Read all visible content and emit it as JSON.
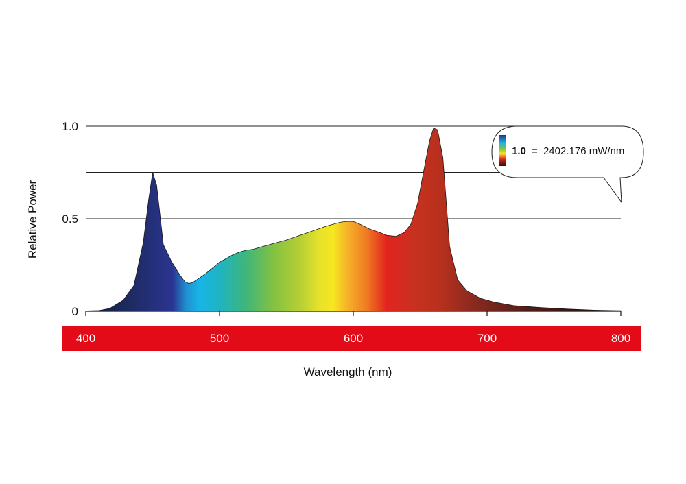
{
  "chart_data": {
    "type": "area",
    "title": "",
    "xlabel": "Wavelength (nm)",
    "ylabel": "Relative Power",
    "xlim": [
      400,
      800
    ],
    "ylim": [
      0,
      1.0
    ],
    "x_ticks": [
      400,
      500,
      600,
      700,
      800
    ],
    "y_ticks": [
      {
        "value": 0,
        "label": "0"
      },
      {
        "value": 0.5,
        "label": "0.5"
      },
      {
        "value": 1.0,
        "label": "1.0"
      }
    ],
    "gridlines": [
      0.25,
      0.5,
      0.75,
      1.0
    ],
    "grid": true,
    "x": [
      400,
      410,
      418,
      428,
      436,
      443,
      447,
      450,
      453,
      458,
      464,
      470,
      474,
      477,
      480,
      485,
      490,
      495,
      500,
      505,
      510,
      515,
      520,
      525,
      530,
      540,
      550,
      560,
      570,
      580,
      585,
      590,
      595,
      600,
      605,
      612,
      620,
      625,
      632,
      638,
      643,
      648,
      653,
      657,
      660,
      663,
      667,
      672,
      678,
      685,
      695,
      705,
      720,
      740,
      760,
      780,
      800
    ],
    "values": [
      0.002,
      0.004,
      0.015,
      0.06,
      0.14,
      0.37,
      0.6,
      0.75,
      0.68,
      0.36,
      0.27,
      0.2,
      0.16,
      0.15,
      0.155,
      0.18,
      0.205,
      0.235,
      0.265,
      0.285,
      0.305,
      0.32,
      0.33,
      0.335,
      0.345,
      0.365,
      0.385,
      0.41,
      0.435,
      0.46,
      0.47,
      0.48,
      0.485,
      0.485,
      0.47,
      0.445,
      0.425,
      0.41,
      0.405,
      0.425,
      0.47,
      0.58,
      0.77,
      0.92,
      0.99,
      0.98,
      0.83,
      0.35,
      0.17,
      0.11,
      0.07,
      0.05,
      0.03,
      0.02,
      0.012,
      0.006,
      0.003
    ],
    "color_gradient": [
      {
        "nm": 400,
        "color": "#0f1a3a"
      },
      {
        "nm": 430,
        "color": "#1c2a5c"
      },
      {
        "nm": 450,
        "color": "#25307a"
      },
      {
        "nm": 465,
        "color": "#2a3592"
      },
      {
        "nm": 475,
        "color": "#1f8fd0"
      },
      {
        "nm": 485,
        "color": "#18b5e6"
      },
      {
        "nm": 500,
        "color": "#1fb4c2"
      },
      {
        "nm": 520,
        "color": "#3fb67a"
      },
      {
        "nm": 540,
        "color": "#83c142"
      },
      {
        "nm": 560,
        "color": "#b5cf35"
      },
      {
        "nm": 575,
        "color": "#e7e22a"
      },
      {
        "nm": 585,
        "color": "#f6e720"
      },
      {
        "nm": 595,
        "color": "#f6b42a"
      },
      {
        "nm": 610,
        "color": "#ef7b22"
      },
      {
        "nm": 625,
        "color": "#e2231f"
      },
      {
        "nm": 645,
        "color": "#c8311f"
      },
      {
        "nm": 665,
        "color": "#b8301e"
      },
      {
        "nm": 690,
        "color": "#8a2a1f"
      },
      {
        "nm": 730,
        "color": "#4f1e18"
      },
      {
        "nm": 800,
        "color": "#1e0e0c"
      }
    ],
    "axis_band_color": "#e30b17",
    "legend": {
      "value_label": "1.0",
      "equals": "=",
      "text": "2402.176 mW/nm",
      "position": "top-right"
    }
  }
}
